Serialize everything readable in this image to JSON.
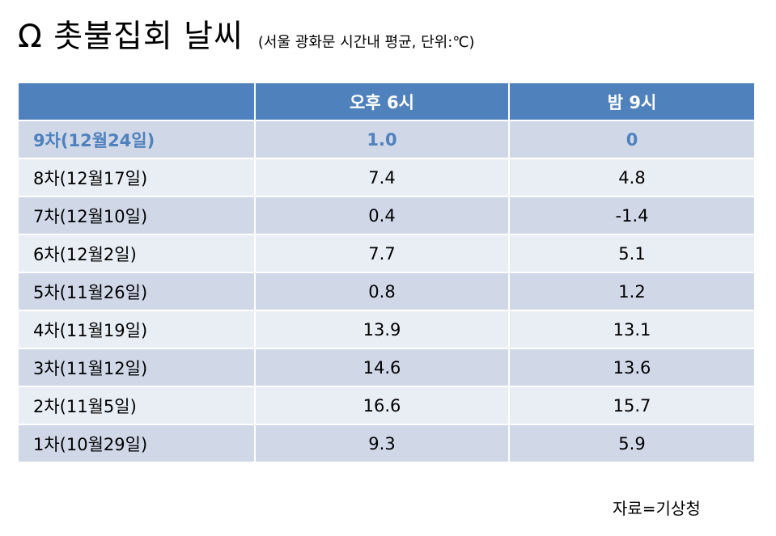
{
  "title": {
    "main": "Ω 촛불집회 날씨",
    "sub": "(서울 광화문 시간내 평균, 단위:℃)"
  },
  "table": {
    "headers": [
      "",
      "오후 6시",
      "밤 9시"
    ],
    "rows": [
      {
        "label": "9차(12월24일)",
        "pm6": "1.0",
        "pm9": "0",
        "highlight": true
      },
      {
        "label": "8차(12월17일)",
        "pm6": "7.4",
        "pm9": "4.8"
      },
      {
        "label": "7차(12월10일)",
        "pm6": "0.4",
        "pm9": "-1.4"
      },
      {
        "label": "6차(12월2일)",
        "pm6": "7.7",
        "pm9": "5.1"
      },
      {
        "label": "5차(11월26일)",
        "pm6": "0.8",
        "pm9": "1.2"
      },
      {
        "label": "4차(11월19일)",
        "pm6": "13.9",
        "pm9": "13.1"
      },
      {
        "label": "3차(11월12일)",
        "pm6": "14.6",
        "pm9": "13.6"
      },
      {
        "label": "2차(11월5일)",
        "pm6": "16.6",
        "pm9": "15.7"
      },
      {
        "label": "1차(10월29일)",
        "pm6": "9.3",
        "pm9": "5.9"
      }
    ]
  },
  "source": "자료=기상청",
  "colors": {
    "header_bg": "#4f81bd",
    "row_dark": "#d0d8e8",
    "row_light": "#e9edf4",
    "highlight_text": "#4f81bd"
  }
}
